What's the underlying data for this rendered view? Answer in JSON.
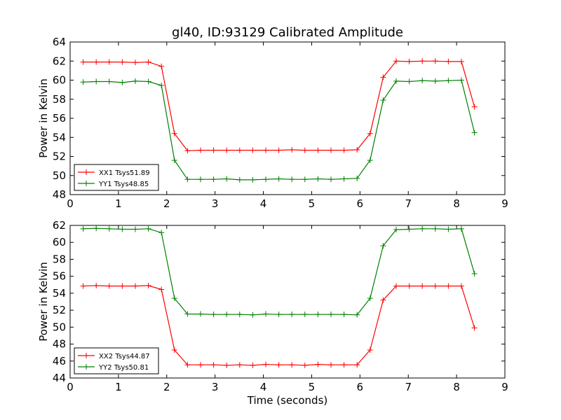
{
  "figure": {
    "title": "gl40, ID:93129 Calibrated Amplitude",
    "xlabel": "Time (seconds)"
  },
  "chart_data": [
    {
      "type": "line",
      "title": "gl40, ID:93129 Calibrated Amplitude",
      "xlabel": "",
      "ylabel": "Power in Kelvin",
      "xlim": [
        0,
        9
      ],
      "ylim": [
        48,
        64
      ],
      "xticks": [
        "0",
        "1",
        "2",
        "3",
        "4",
        "5",
        "6",
        "7",
        "8",
        "9"
      ],
      "yticks": [
        "48",
        "50",
        "52",
        "54",
        "56",
        "58",
        "60",
        "62",
        "64"
      ],
      "grid": false,
      "legend_position": "lower-left",
      "x": [
        0.27,
        0.54,
        0.81,
        1.08,
        1.35,
        1.62,
        1.89,
        2.16,
        2.43,
        2.7,
        2.97,
        3.24,
        3.51,
        3.78,
        4.05,
        4.32,
        4.59,
        4.86,
        5.13,
        5.4,
        5.67,
        5.94,
        6.21,
        6.48,
        6.75,
        7.02,
        7.29,
        7.56,
        7.83,
        8.1,
        8.37
      ],
      "series": [
        {
          "name": "XX1 Tsys51.89",
          "color": "#ff0000",
          "values": [
            61.9,
            61.9,
            61.9,
            61.9,
            61.85,
            61.9,
            61.45,
            54.4,
            52.6,
            52.65,
            52.65,
            52.65,
            52.65,
            52.65,
            52.65,
            52.65,
            52.7,
            52.65,
            52.65,
            52.65,
            52.65,
            52.7,
            54.4,
            60.3,
            62.0,
            61.95,
            62.0,
            62.0,
            61.95,
            61.95,
            57.2
          ]
        },
        {
          "name": "YY1 Tsys48.85",
          "color": "#008000",
          "values": [
            59.8,
            59.85,
            59.85,
            59.75,
            59.9,
            59.85,
            59.45,
            51.6,
            49.6,
            49.6,
            49.6,
            49.65,
            49.55,
            49.55,
            49.6,
            49.65,
            49.6,
            49.6,
            49.65,
            49.6,
            49.65,
            49.7,
            51.6,
            57.9,
            59.9,
            59.85,
            59.95,
            59.9,
            59.95,
            60.0,
            54.5
          ]
        }
      ]
    },
    {
      "type": "line",
      "title": "",
      "xlabel": "Time (seconds)",
      "ylabel": "Power in Kelvin",
      "xlim": [
        0,
        9
      ],
      "ylim": [
        44,
        62
      ],
      "xticks": [
        "0",
        "1",
        "2",
        "3",
        "4",
        "5",
        "6",
        "7",
        "8",
        "9"
      ],
      "yticks": [
        "44",
        "46",
        "48",
        "50",
        "52",
        "54",
        "56",
        "58",
        "60",
        "62"
      ],
      "grid": false,
      "legend_position": "lower-left",
      "x": [
        0.27,
        0.54,
        0.81,
        1.08,
        1.35,
        1.62,
        1.89,
        2.16,
        2.43,
        2.7,
        2.97,
        3.24,
        3.51,
        3.78,
        4.05,
        4.32,
        4.59,
        4.86,
        5.13,
        5.4,
        5.67,
        5.94,
        6.21,
        6.48,
        6.75,
        7.02,
        7.29,
        7.56,
        7.83,
        8.1,
        8.37
      ],
      "series": [
        {
          "name": "XX2 Tsys44.87",
          "color": "#ff0000",
          "values": [
            54.85,
            54.9,
            54.85,
            54.85,
            54.85,
            54.9,
            54.45,
            47.3,
            45.55,
            45.55,
            45.55,
            45.5,
            45.55,
            45.5,
            45.6,
            45.55,
            45.55,
            45.5,
            45.6,
            45.55,
            45.55,
            45.55,
            47.3,
            53.2,
            54.85,
            54.85,
            54.85,
            54.85,
            54.85,
            54.85,
            49.9
          ]
        },
        {
          "name": "YY2 Tsys50.81",
          "color": "#008000",
          "values": [
            61.6,
            61.65,
            61.6,
            61.55,
            61.55,
            61.6,
            61.15,
            53.4,
            51.55,
            51.55,
            51.5,
            51.5,
            51.5,
            51.45,
            51.55,
            51.5,
            51.5,
            51.5,
            51.5,
            51.5,
            51.5,
            51.45,
            53.4,
            59.6,
            61.5,
            61.55,
            61.6,
            61.6,
            61.55,
            61.6,
            56.3
          ]
        }
      ]
    }
  ]
}
